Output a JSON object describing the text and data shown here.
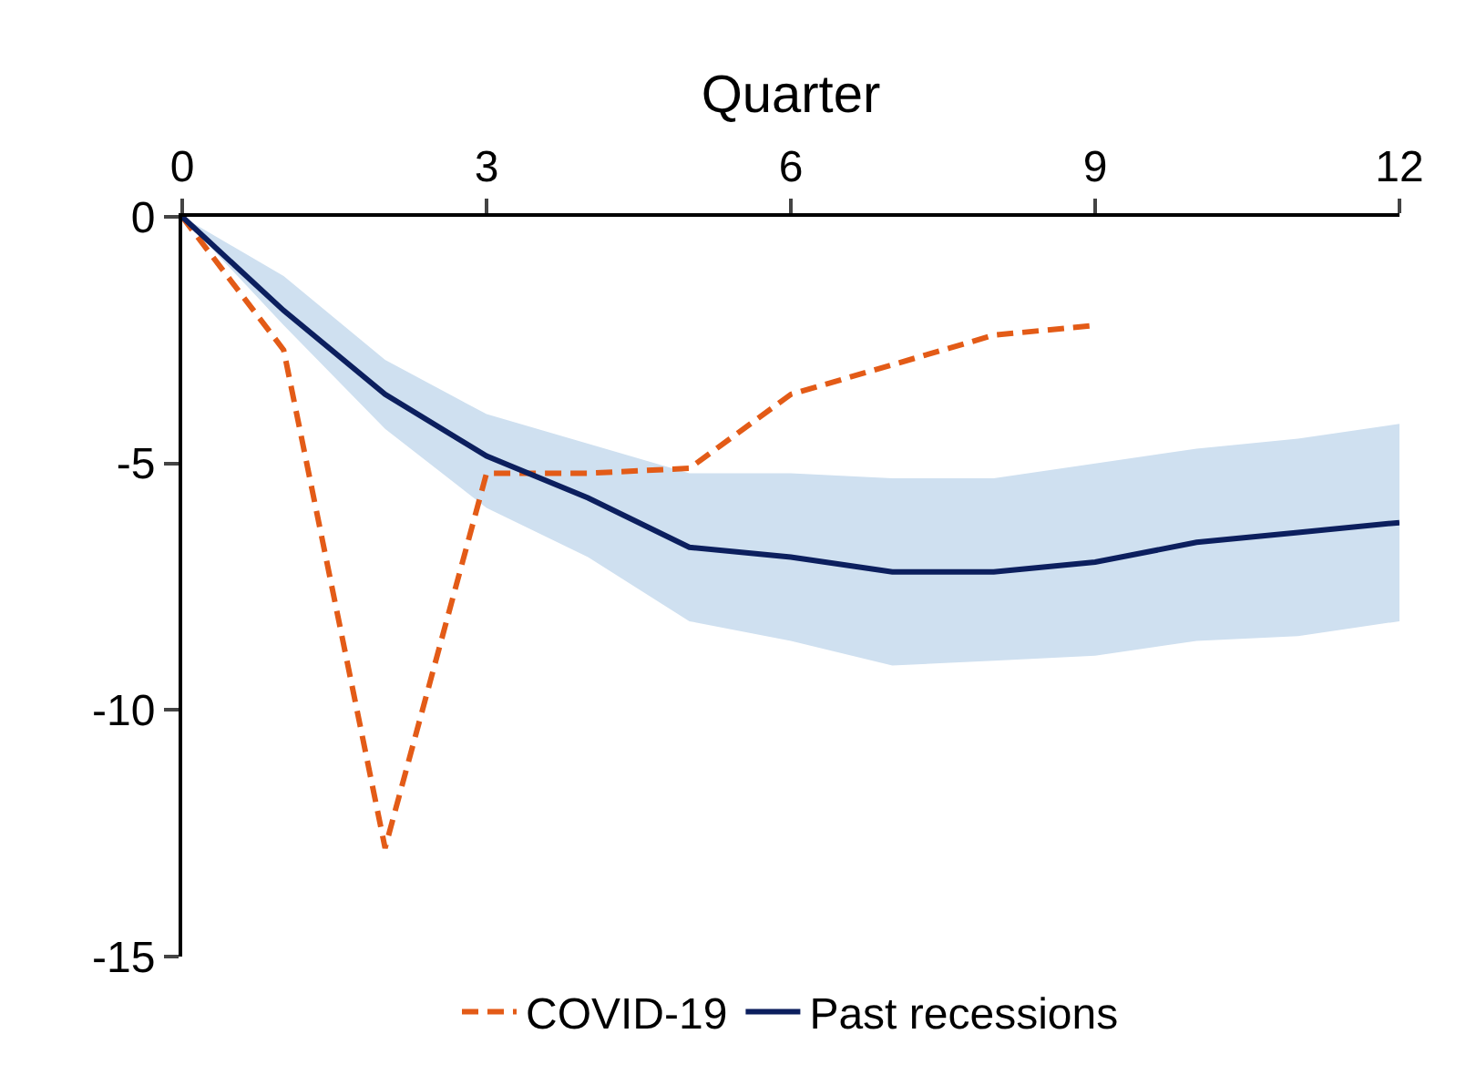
{
  "chart_data": {
    "type": "line",
    "xlabel": "Quarter",
    "x": [
      0,
      1,
      2,
      3,
      4,
      5,
      6,
      7,
      8,
      9,
      10,
      11,
      12
    ],
    "xlim": [
      0,
      12
    ],
    "xticks": [
      0,
      3,
      6,
      9,
      12
    ],
    "ylim": [
      -15,
      0
    ],
    "yticks": [
      -15,
      -10,
      -5,
      0
    ],
    "legend": "bottom",
    "marker": "none",
    "series": [
      {
        "name": "COVID-19",
        "color": "#e35b17",
        "line_style": "dashed",
        "x": [
          0,
          1,
          2,
          3,
          4,
          5,
          6,
          7,
          8,
          9
        ],
        "values": [
          0,
          -2.7,
          -12.8,
          -5.2,
          -5.2,
          -5.1,
          -3.6,
          -3.0,
          -2.4,
          -2.2
        ]
      },
      {
        "name": "Past recessions",
        "color": "#0c1f5e",
        "line_style": "solid",
        "values": [
          0,
          -1.9,
          -3.6,
          -4.85,
          -5.7,
          -6.7,
          -6.9,
          -7.2,
          -7.2,
          -7.0,
          -6.6,
          -6.4,
          -6.2
        ],
        "upper": [
          0,
          -1.2,
          -2.9,
          -4.0,
          -4.6,
          -5.2,
          -5.2,
          -5.3,
          -5.3,
          -5.0,
          -4.7,
          -4.5,
          -4.2
        ],
        "lower": [
          0,
          -2.2,
          -4.3,
          -5.9,
          -6.9,
          -8.2,
          -8.6,
          -9.1,
          -9.0,
          -8.9,
          -8.6,
          -8.5,
          -8.2
        ]
      }
    ]
  }
}
